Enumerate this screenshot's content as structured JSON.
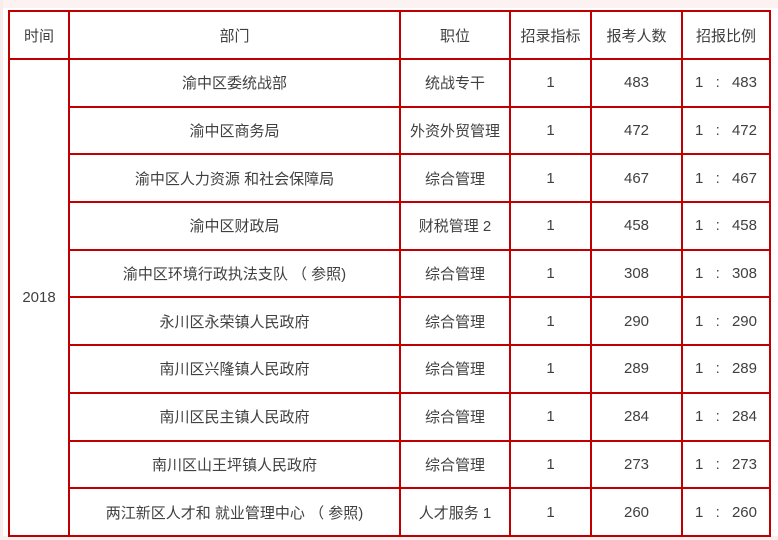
{
  "page": {
    "background": "#ffffff",
    "edge_tint": "#fdf2f2"
  },
  "table": {
    "border_color": "#c00000",
    "text_color": "#404040",
    "headers": [
      "时间",
      "部门",
      "职位",
      "招录指标",
      "报考人数",
      "招报比例"
    ],
    "year": "2018",
    "rows": [
      {
        "department": "渝中区委统战部",
        "position": "统战专干",
        "quota": "1",
        "applicants": "483",
        "ratio": {
          "q": "1",
          "sep": ":",
          "n": "483"
        }
      },
      {
        "department": "渝中区商务局",
        "position": "外资外贸管理",
        "quota": "1",
        "applicants": "472",
        "ratio": {
          "q": "1",
          "sep": ":",
          "n": "472"
        }
      },
      {
        "department": "渝中区人力资源 和社会保障局",
        "position": "综合管理",
        "quota": "1",
        "applicants": "467",
        "ratio": {
          "q": "1",
          "sep": ":",
          "n": "467"
        }
      },
      {
        "department": "渝中区财政局",
        "position": "财税管理 2",
        "quota": "1",
        "applicants": "458",
        "ratio": {
          "q": "1",
          "sep": ":",
          "n": "458"
        }
      },
      {
        "department": "渝中区环境行政执法支队 （ 参照)",
        "position": "综合管理",
        "quota": "1",
        "applicants": "308",
        "ratio": {
          "q": "1",
          "sep": ":",
          "n": "308"
        }
      },
      {
        "department": "永川区永荣镇人民政府",
        "position": "综合管理",
        "quota": "1",
        "applicants": "290",
        "ratio": {
          "q": "1",
          "sep": ":",
          "n": "290"
        }
      },
      {
        "department": "南川区兴隆镇人民政府",
        "position": "综合管理",
        "quota": "1",
        "applicants": "289",
        "ratio": {
          "q": "1",
          "sep": ":",
          "n": "289"
        }
      },
      {
        "department": "南川区民主镇人民政府",
        "position": "综合管理",
        "quota": "1",
        "applicants": "284",
        "ratio": {
          "q": "1",
          "sep": ":",
          "n": "284"
        }
      },
      {
        "department": "南川区山王坪镇人民政府",
        "position": "综合管理",
        "quota": "1",
        "applicants": "273",
        "ratio": {
          "q": "1",
          "sep": ":",
          "n": "273"
        }
      },
      {
        "department": "两江新区人才和 就业管理中心 （ 参照)",
        "position": "人才服务 1",
        "quota": "1",
        "applicants": "260",
        "ratio": {
          "q": "1",
          "sep": ":",
          "n": "260"
        }
      }
    ]
  }
}
